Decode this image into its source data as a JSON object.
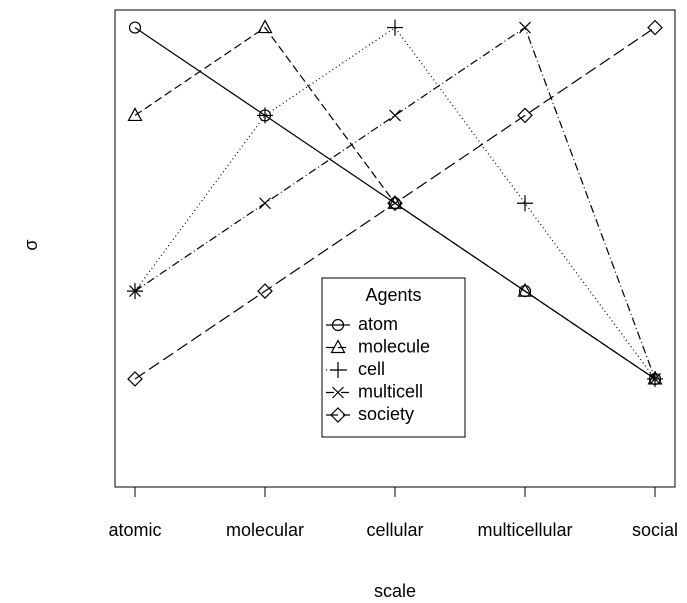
{
  "chart_data": {
    "type": "line",
    "xlabel": "scale",
    "ylabel": "σ",
    "categories": [
      "atomic",
      "molecular",
      "cellular",
      "multicellular",
      "social"
    ],
    "ylim": [
      -0.23,
      5.2
    ],
    "legend_title": "Agents",
    "legend": "bottom center",
    "series": [
      {
        "name": "atom",
        "color": "#000000",
        "marker": "circle",
        "dash": "solid",
        "values": [
          5,
          4,
          3,
          2,
          1
        ]
      },
      {
        "name": "molecule",
        "color": "#000000",
        "marker": "triangle",
        "dash": "dashed",
        "values": [
          4,
          5,
          3,
          2,
          1
        ]
      },
      {
        "name": "cell",
        "color": "#000000",
        "marker": "plus",
        "dash": "dotted",
        "values": [
          2,
          4,
          5,
          3,
          1
        ]
      },
      {
        "name": "multicell",
        "color": "#000000",
        "marker": "cross",
        "dash": "dotdash",
        "values": [
          2,
          3,
          4,
          5,
          1
        ]
      },
      {
        "name": "society",
        "color": "#000000",
        "marker": "diamond",
        "dash": "longdash",
        "values": [
          1,
          2,
          3,
          4,
          5
        ]
      }
    ]
  }
}
